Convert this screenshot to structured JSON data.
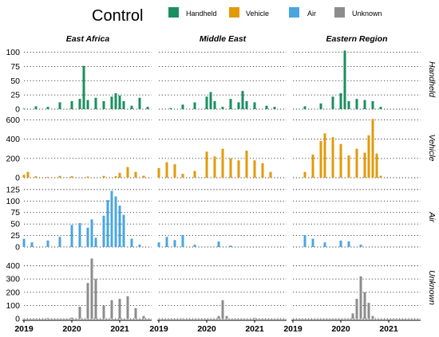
{
  "chart_data": {
    "type": "bar",
    "legend": {
      "title": "Control",
      "placement": "top",
      "entries": [
        {
          "name": "Handheld",
          "color": "#1a8f5f"
        },
        {
          "name": "Vehicle",
          "color": "#e39a08"
        },
        {
          "name": "Air",
          "color": "#4aa5e0"
        },
        {
          "name": "Unknown",
          "color": "#8c8c8c"
        }
      ]
    },
    "columns": [
      "East Africa",
      "Middle East",
      "Eastern Region"
    ],
    "rows": [
      {
        "name": "Handheld",
        "color": "#1a8f5f",
        "yticks": [
          0,
          25,
          50,
          75,
          100
        ],
        "ylim": [
          0,
          105
        ]
      },
      {
        "name": "Vehicle",
        "color": "#e39a08",
        "yticks": [
          0,
          200,
          400,
          600
        ],
        "ylim": [
          0,
          620
        ]
      },
      {
        "name": "Air",
        "color": "#4aa5e0",
        "yticks": [
          0,
          25,
          50,
          75,
          100,
          125
        ],
        "ylim": [
          0,
          130
        ]
      },
      {
        "name": "Unknown",
        "color": "#8c8c8c",
        "yticks": [
          0,
          100,
          200,
          300,
          400
        ],
        "ylim": [
          0,
          470
        ]
      }
    ],
    "x_ticks": [
      "2019",
      "2020",
      "2021"
    ],
    "x_range": [
      "2019-01",
      "2021-09"
    ],
    "grid": "horizontal dotted",
    "series_by_panel": {
      "Handheld|East Africa": [
        [
          "2019-01",
          1
        ],
        [
          "2019-04",
          5
        ],
        [
          "2019-07",
          4
        ],
        [
          "2019-10",
          12
        ],
        [
          "2020-01",
          14
        ],
        [
          "2020-03",
          18
        ],
        [
          "2020-04",
          76
        ],
        [
          "2020-05",
          16
        ],
        [
          "2020-07",
          20
        ],
        [
          "2020-09",
          14
        ],
        [
          "2020-11",
          22
        ],
        [
          "2020-12",
          28
        ],
        [
          "2021-01",
          24
        ],
        [
          "2021-02",
          14
        ],
        [
          "2021-04",
          6
        ],
        [
          "2021-06",
          20
        ],
        [
          "2021-08",
          4
        ]
      ],
      "Vehicle|East Africa": [
        [
          "2019-01",
          30
        ],
        [
          "2019-02",
          60
        ],
        [
          "2019-04",
          15
        ],
        [
          "2019-07",
          8
        ],
        [
          "2019-10",
          18
        ],
        [
          "2020-01",
          15
        ],
        [
          "2020-05",
          12
        ],
        [
          "2020-09",
          18
        ],
        [
          "2020-12",
          15
        ],
        [
          "2021-01",
          50
        ],
        [
          "2021-03",
          110
        ],
        [
          "2021-05",
          60
        ],
        [
          "2021-07",
          20
        ]
      ],
      "Air|East Africa": [
        [
          "2019-01",
          18
        ],
        [
          "2019-03",
          10
        ],
        [
          "2019-07",
          14
        ],
        [
          "2019-10",
          22
        ],
        [
          "2020-01",
          48
        ],
        [
          "2020-03",
          52
        ],
        [
          "2020-05",
          42
        ],
        [
          "2020-06",
          60
        ],
        [
          "2020-07",
          20
        ],
        [
          "2020-09",
          68
        ],
        [
          "2020-10",
          102
        ],
        [
          "2020-11",
          122
        ],
        [
          "2020-12",
          110
        ],
        [
          "2021-01",
          90
        ],
        [
          "2021-02",
          70
        ],
        [
          "2021-04",
          18
        ],
        [
          "2021-06",
          5
        ]
      ],
      "Unknown|East Africa": [
        [
          "2019-01",
          2
        ],
        [
          "2019-07",
          5
        ],
        [
          "2020-01",
          8
        ],
        [
          "2020-03",
          90
        ],
        [
          "2020-05",
          270
        ],
        [
          "2020-06",
          455
        ],
        [
          "2020-07",
          300
        ],
        [
          "2020-09",
          100
        ],
        [
          "2020-11",
          140
        ],
        [
          "2021-01",
          150
        ],
        [
          "2021-03",
          170
        ],
        [
          "2021-05",
          80
        ],
        [
          "2021-07",
          20
        ]
      ],
      "Handheld|Middle East": [
        [
          "2019-04",
          2
        ],
        [
          "2019-07",
          8
        ],
        [
          "2019-10",
          12
        ],
        [
          "2020-01",
          22
        ],
        [
          "2020-02",
          30
        ],
        [
          "2020-03",
          14
        ],
        [
          "2020-05",
          4
        ],
        [
          "2020-07",
          18
        ],
        [
          "2020-09",
          12
        ],
        [
          "2020-10",
          32
        ],
        [
          "2020-11",
          14
        ],
        [
          "2021-01",
          12
        ],
        [
          "2021-04",
          6
        ],
        [
          "2021-06",
          4
        ]
      ],
      "Vehicle|Middle East": [
        [
          "2019-01",
          100
        ],
        [
          "2019-03",
          160
        ],
        [
          "2019-05",
          140
        ],
        [
          "2019-07",
          40
        ],
        [
          "2019-10",
          70
        ],
        [
          "2020-01",
          270
        ],
        [
          "2020-03",
          220
        ],
        [
          "2020-05",
          300
        ],
        [
          "2020-07",
          200
        ],
        [
          "2020-09",
          180
        ],
        [
          "2020-11",
          280
        ],
        [
          "2021-01",
          180
        ],
        [
          "2021-03",
          150
        ],
        [
          "2021-05",
          60
        ]
      ],
      "Air|Middle East": [
        [
          "2019-01",
          10
        ],
        [
          "2019-03",
          22
        ],
        [
          "2019-05",
          15
        ],
        [
          "2019-07",
          26
        ],
        [
          "2019-10",
          5
        ],
        [
          "2020-04",
          12
        ],
        [
          "2020-07",
          3
        ]
      ],
      "Unknown|Middle East": [
        [
          "2019-07",
          3
        ],
        [
          "2020-04",
          20
        ],
        [
          "2020-05",
          140
        ],
        [
          "2020-06",
          20
        ],
        [
          "2021-01",
          5
        ]
      ],
      "Handheld|Eastern Region": [
        [
          "2019-04",
          5
        ],
        [
          "2019-08",
          10
        ],
        [
          "2019-11",
          22
        ],
        [
          "2020-01",
          28
        ],
        [
          "2020-02",
          103
        ],
        [
          "2020-03",
          14
        ],
        [
          "2020-05",
          18
        ],
        [
          "2020-07",
          16
        ],
        [
          "2020-09",
          14
        ],
        [
          "2020-11",
          4
        ]
      ],
      "Vehicle|Eastern Region": [
        [
          "2019-04",
          60
        ],
        [
          "2019-06",
          240
        ],
        [
          "2019-08",
          380
        ],
        [
          "2019-09",
          460
        ],
        [
          "2019-11",
          420
        ],
        [
          "2020-01",
          350
        ],
        [
          "2020-03",
          230
        ],
        [
          "2020-05",
          300
        ],
        [
          "2020-07",
          260
        ],
        [
          "2020-08",
          440
        ],
        [
          "2020-09",
          610
        ],
        [
          "2020-10",
          250
        ],
        [
          "2020-11",
          20
        ]
      ],
      "Air|Eastern Region": [
        [
          "2019-04",
          26
        ],
        [
          "2019-06",
          18
        ],
        [
          "2019-09",
          10
        ],
        [
          "2020-01",
          14
        ],
        [
          "2020-03",
          12
        ],
        [
          "2020-06",
          5
        ]
      ],
      "Unknown|Eastern Region": [
        [
          "2020-04",
          40
        ],
        [
          "2020-05",
          150
        ],
        [
          "2020-06",
          320
        ],
        [
          "2020-07",
          200
        ],
        [
          "2020-08",
          120
        ],
        [
          "2020-09",
          20
        ]
      ]
    }
  }
}
